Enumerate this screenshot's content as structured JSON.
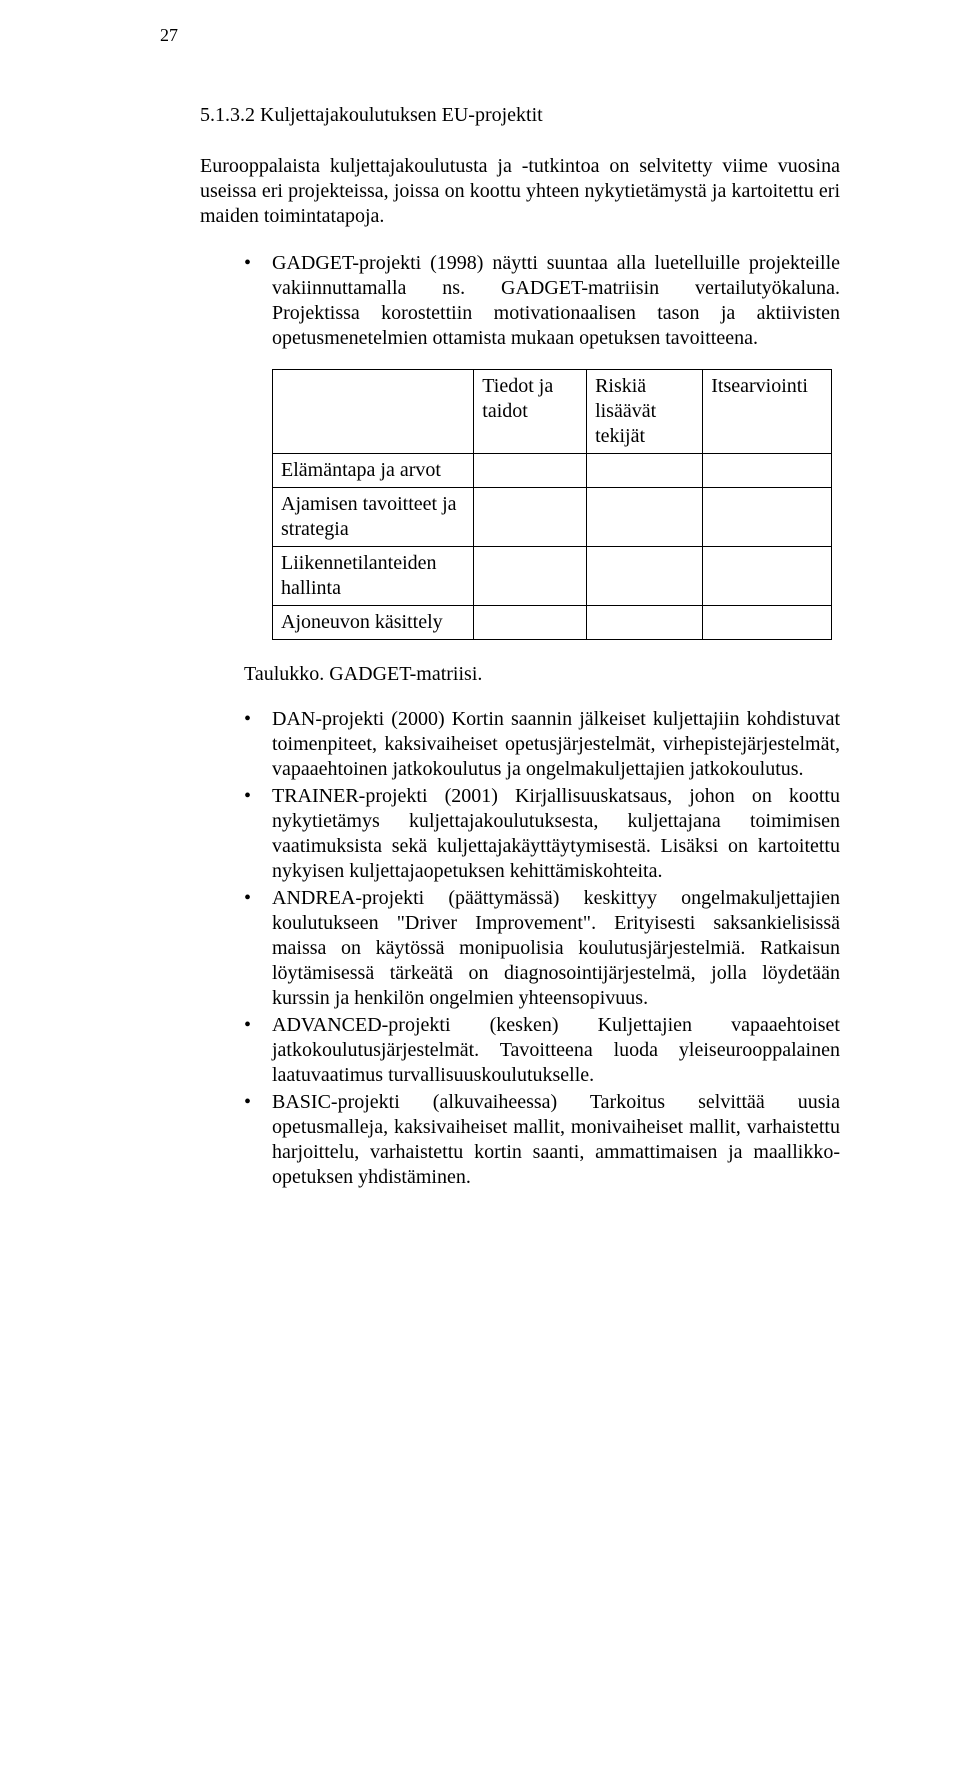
{
  "page_number": "27",
  "heading": "5.1.3.2 Kuljettajakoulutuksen EU-projektit",
  "intro": "Eurooppalaista kuljettajakoulutusta ja -tutkintoa on selvitetty viime vuosina useissa eri projekteissa, joissa on koottu yhteen nykytietämystä ja kartoitettu eri maiden toimintatapoja.",
  "bullet1": "GADGET-projekti (1998) näytti suuntaa alla luetelluille projekteille vakiinnuttamalla ns. GADGET-matriisin vertailutyökaluna. Projektissa korostettiin motivationaalisen tason ja aktiivisten opetusmenetelmien ottamista mukaan opetuksen tavoitteena.",
  "matrix": {
    "col_headers": [
      "Tiedot ja taidot",
      "Riskiä lisäävät tekijät",
      "Itsearviointi"
    ],
    "row_labels": [
      "Elämäntapa ja arvot",
      "Ajamisen tavoitteet ja strategia",
      "Liikennetilanteiden hallinta",
      "Ajoneuvon käsittely"
    ]
  },
  "caption": "Taulukko. GADGET-matriisi.",
  "bullets2": [
    "DAN-projekti  (2000) Kortin saannin jälkeiset kuljettajiin kohdistuvat toimenpiteet, kaksivaiheiset opetusjärjestelmät, virhepistejärjestelmät, vapaaehtoinen jatkokoulutus ja ongelmakuljettajien jatkokoulutus.",
    "TRAINER-projekti (2001) Kirjallisuuskatsaus, johon on koottu nykytietämys kuljettajakoulutuksesta, kuljettajana toimimisen vaatimuksista sekä kuljettajakäyttäytymisestä. Lisäksi on kartoitettu nykyisen kuljettajaopetuksen kehittämiskohteita.",
    "ANDREA-projekti (päättymässä) keskittyy ongelmakuljettajien koulutukseen \"Driver Improvement\". Erityisesti saksankielisissä maissa on käytössä monipuolisia koulutusjärjestelmiä. Ratkaisun löytämisessä tärkeätä on diagnosointijärjestelmä, jolla löydetään kurssin ja henkilön ongelmien yhteensopivuus.",
    "ADVANCED-projekti (kesken) Kuljettajien vapaaehtoiset jatkokoulutusjärjestelmät. Tavoitteena luoda yleiseurooppalainen laatuvaatimus turvallisuuskoulutukselle.",
    "BASIC-projekti (alkuvaiheessa) Tarkoitus selvittää uusia opetusmalleja, kaksivaiheiset mallit, monivaiheiset mallit, varhaistettu harjoittelu, varhaistettu kortin saanti, ammattimaisen ja maallikko-opetuksen yhdistäminen."
  ]
}
